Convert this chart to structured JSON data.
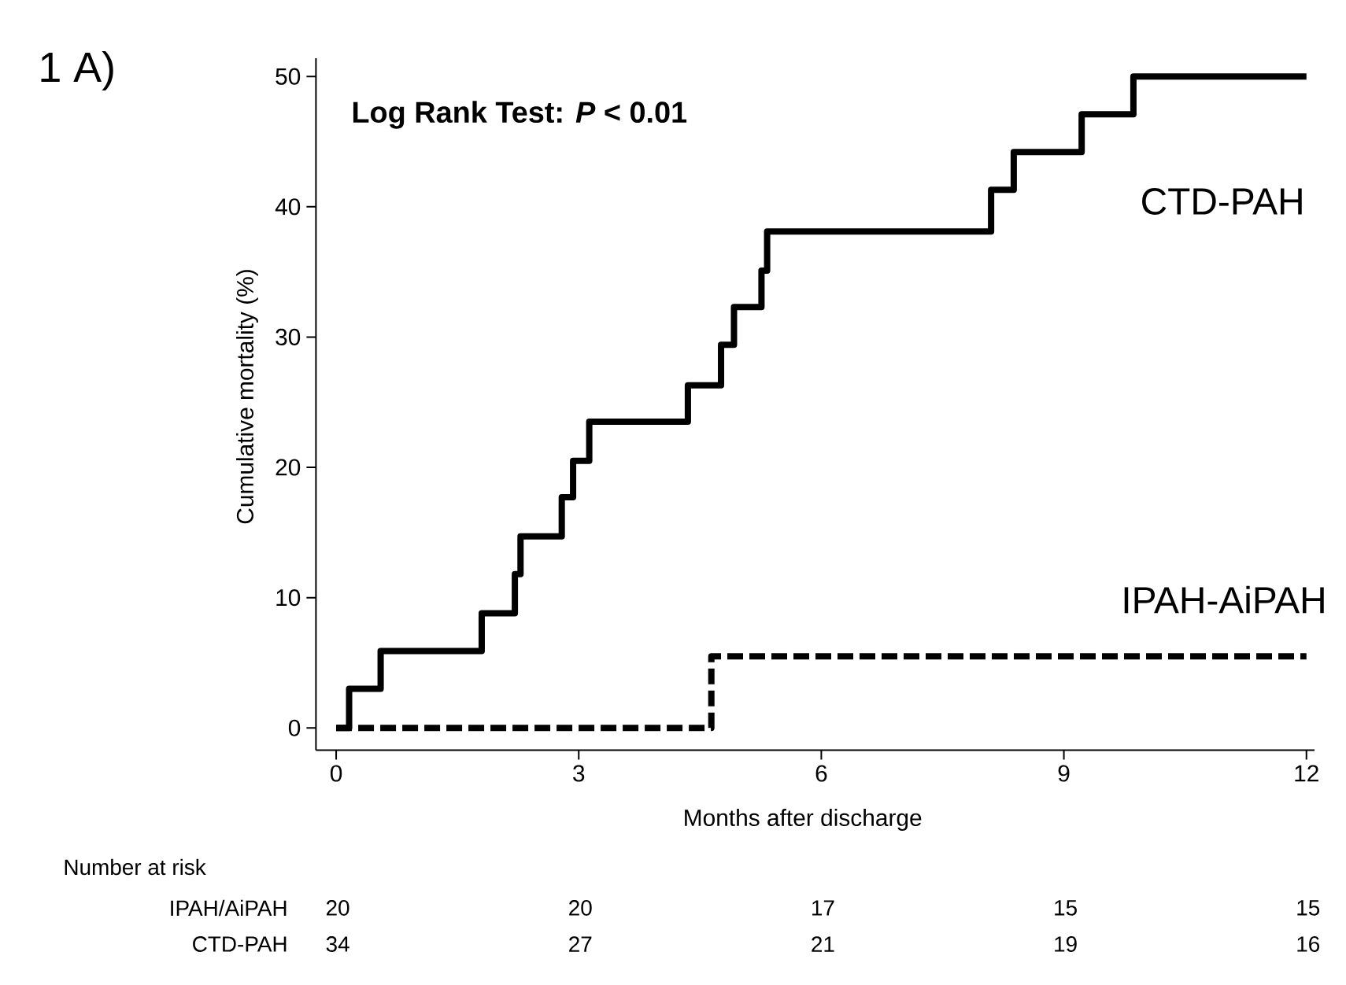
{
  "chart_data": {
    "type": "step",
    "title": "1 A)",
    "xlabel": "Months after discharge",
    "ylabel": "Cumulative mortality (%)",
    "xlim": [
      -0.25,
      12.1
    ],
    "ylim": [
      -1.7,
      51.4
    ],
    "xticks": [
      0,
      3,
      6,
      9,
      12
    ],
    "yticks": [
      0,
      10,
      20,
      30,
      40,
      50
    ],
    "annotations": [
      "Log Rank Test: *P* < 0.01",
      "Number at risk",
      "IPAH/AiPAH",
      "20",
      "20",
      "17",
      "15",
      "15",
      "CTD-PAH",
      "34",
      "27",
      "21",
      "19",
      "16"
    ],
    "series": [
      {
        "name": "CTD-PAH",
        "color": "#000000",
        "line_style": "solid",
        "x": [
          0,
          0.16,
          0.55,
          1.8,
          2.21,
          2.28,
          2.79,
          2.93,
          3.13,
          4.35,
          4.76,
          4.92,
          5.26,
          5.33,
          8.1,
          8.38,
          9.22,
          9.86,
          12
        ],
        "values": [
          0,
          3.0,
          5.9,
          8.8,
          11.8,
          14.7,
          17.7,
          20.5,
          23.5,
          26.3,
          29.4,
          32.3,
          35.1,
          38.1,
          41.3,
          44.2,
          47.1,
          50,
          50
        ]
      },
      {
        "name": "IPAH-AiPAH",
        "color": "#000000",
        "line_style": "dashed",
        "x": [
          0,
          4.64,
          12
        ],
        "values": [
          0,
          5.5,
          5.5
        ]
      }
    ]
  }
}
